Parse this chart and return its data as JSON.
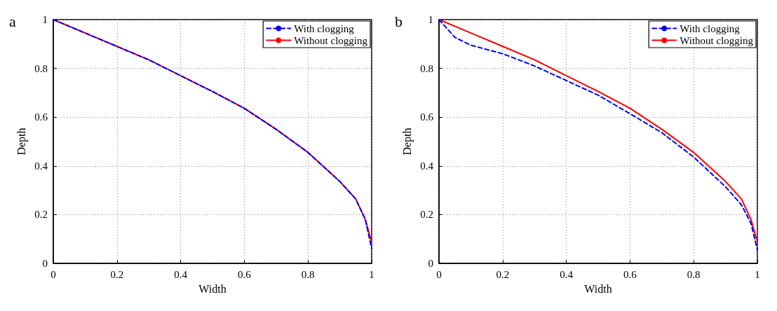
{
  "chart_data": [
    {
      "type": "line",
      "title": "a",
      "xlabel": "Width",
      "ylabel": "Depth",
      "xlim": [
        0,
        1
      ],
      "ylim": [
        0,
        1
      ],
      "xticks": [
        0,
        0.2,
        0.4,
        0.6,
        0.8,
        1
      ],
      "yticks": [
        0,
        0.2,
        0.4,
        0.6,
        0.8,
        1
      ],
      "grid": true,
      "legend": "top right",
      "series": [
        {
          "name": "With clogging",
          "color": "#0000ff",
          "line_style": "dashed",
          "x": [
            0,
            0.1,
            0.2,
            0.3,
            0.4,
            0.5,
            0.6,
            0.7,
            0.8,
            0.9,
            0.95,
            0.98,
            1
          ],
          "values": [
            1,
            0.945,
            0.89,
            0.835,
            0.77,
            0.705,
            0.636,
            0.55,
            0.455,
            0.336,
            0.264,
            0.18,
            0.06
          ]
        },
        {
          "name": "Without clogging",
          "color": "#ff0000",
          "line_style": "solid",
          "x": [
            0,
            0.1,
            0.2,
            0.3,
            0.4,
            0.5,
            0.6,
            0.7,
            0.8,
            0.9,
            0.95,
            0.98,
            1
          ],
          "values": [
            1,
            0.945,
            0.89,
            0.835,
            0.77,
            0.705,
            0.636,
            0.55,
            0.455,
            0.336,
            0.264,
            0.18,
            0.086
          ]
        }
      ]
    },
    {
      "type": "line",
      "title": "b",
      "xlabel": "Width",
      "ylabel": "Depth",
      "xlim": [
        0,
        1
      ],
      "ylim": [
        0,
        1
      ],
      "xticks": [
        0,
        0.2,
        0.4,
        0.6,
        0.8,
        1
      ],
      "yticks": [
        0,
        0.2,
        0.4,
        0.6,
        0.8,
        1
      ],
      "grid": true,
      "legend": "top right",
      "series": [
        {
          "name": "With clogging",
          "color": "#0000ff",
          "line_style": "dashed",
          "x": [
            0,
            0.05,
            0.1,
            0.2,
            0.3,
            0.4,
            0.5,
            0.6,
            0.7,
            0.8,
            0.9,
            0.95,
            0.98,
            1
          ],
          "values": [
            1,
            0.927,
            0.895,
            0.86,
            0.81,
            0.75,
            0.69,
            0.614,
            0.536,
            0.436,
            0.314,
            0.24,
            0.164,
            0.055
          ]
        },
        {
          "name": "Without clogging",
          "color": "#ff0000",
          "line_style": "solid",
          "x": [
            0,
            0.1,
            0.2,
            0.3,
            0.4,
            0.5,
            0.6,
            0.7,
            0.8,
            0.9,
            0.95,
            0.98,
            1
          ],
          "values": [
            1,
            0.945,
            0.89,
            0.835,
            0.77,
            0.705,
            0.636,
            0.55,
            0.455,
            0.336,
            0.264,
            0.18,
            0.086
          ]
        }
      ]
    }
  ]
}
